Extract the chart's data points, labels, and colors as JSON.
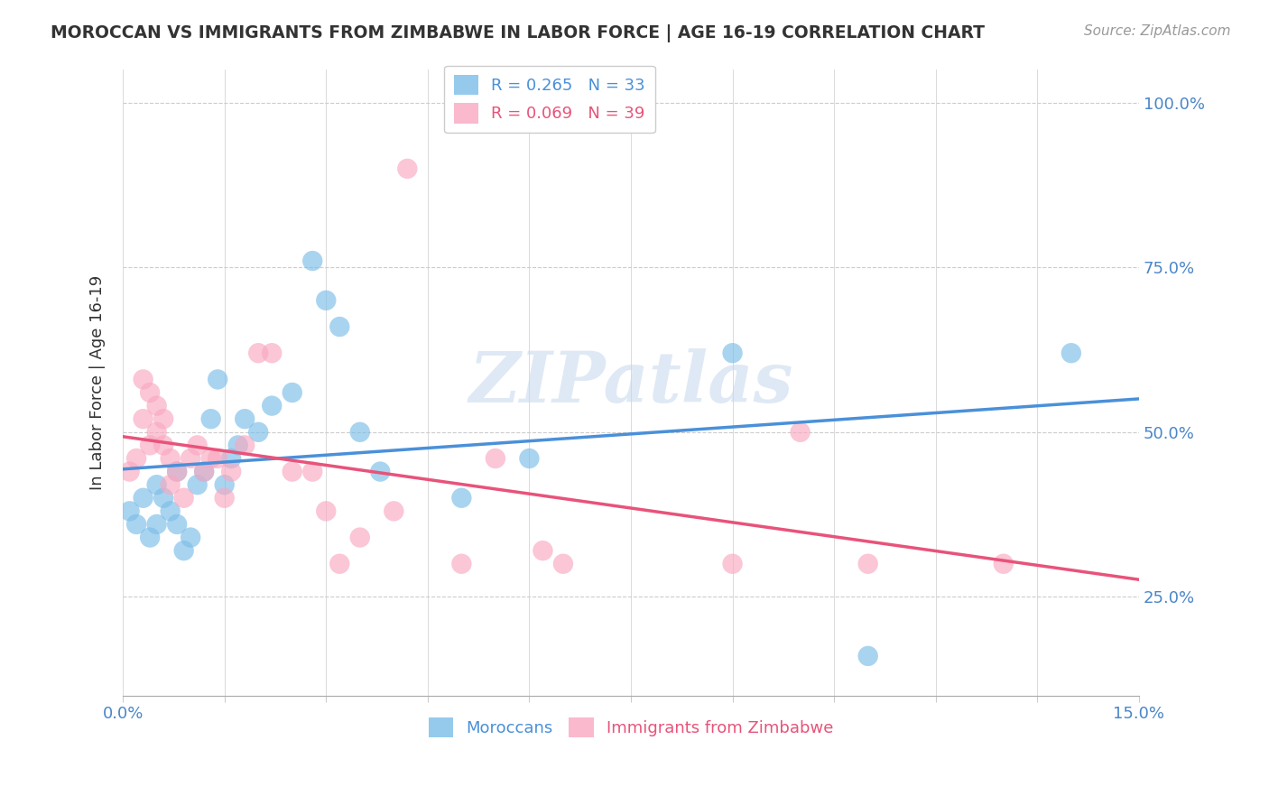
{
  "title": "MOROCCAN VS IMMIGRANTS FROM ZIMBABWE IN LABOR FORCE | AGE 16-19 CORRELATION CHART",
  "source": "Source: ZipAtlas.com",
  "ylabel": "In Labor Force | Age 16-19",
  "legend_moroccan": "R = 0.265   N = 33",
  "legend_zimbabwe": "R = 0.069   N = 39",
  "legend_label_moroccan": "Moroccans",
  "legend_label_zimbabwe": "Immigrants from Zimbabwe",
  "moroccan_color": "#7bbde8",
  "zimbabwe_color": "#f9a8c0",
  "moroccan_line_color": "#4a90d9",
  "zimbabwe_line_color": "#e8537a",
  "watermark": "ZIPatlas",
  "xmin": 0.0,
  "xmax": 0.15,
  "ymin": 0.1,
  "ymax": 1.05,
  "moroccan_x": [
    0.001,
    0.002,
    0.003,
    0.004,
    0.005,
    0.005,
    0.006,
    0.007,
    0.008,
    0.008,
    0.009,
    0.01,
    0.011,
    0.012,
    0.013,
    0.014,
    0.015,
    0.016,
    0.017,
    0.018,
    0.02,
    0.022,
    0.025,
    0.028,
    0.03,
    0.032,
    0.035,
    0.038,
    0.05,
    0.06,
    0.09,
    0.11,
    0.14
  ],
  "moroccan_y": [
    0.38,
    0.36,
    0.4,
    0.34,
    0.36,
    0.42,
    0.4,
    0.38,
    0.44,
    0.36,
    0.32,
    0.34,
    0.42,
    0.44,
    0.52,
    0.58,
    0.42,
    0.46,
    0.48,
    0.52,
    0.5,
    0.54,
    0.56,
    0.76,
    0.7,
    0.66,
    0.5,
    0.44,
    0.4,
    0.46,
    0.62,
    0.16,
    0.62
  ],
  "zimbabwe_x": [
    0.001,
    0.002,
    0.003,
    0.003,
    0.004,
    0.004,
    0.005,
    0.005,
    0.006,
    0.006,
    0.007,
    0.007,
    0.008,
    0.009,
    0.01,
    0.011,
    0.012,
    0.013,
    0.014,
    0.015,
    0.016,
    0.018,
    0.02,
    0.022,
    0.025,
    0.028,
    0.03,
    0.032,
    0.035,
    0.04,
    0.042,
    0.05,
    0.055,
    0.062,
    0.065,
    0.09,
    0.1,
    0.11,
    0.13
  ],
  "zimbabwe_y": [
    0.44,
    0.46,
    0.52,
    0.58,
    0.48,
    0.56,
    0.5,
    0.54,
    0.48,
    0.52,
    0.46,
    0.42,
    0.44,
    0.4,
    0.46,
    0.48,
    0.44,
    0.46,
    0.46,
    0.4,
    0.44,
    0.48,
    0.62,
    0.62,
    0.44,
    0.44,
    0.38,
    0.3,
    0.34,
    0.38,
    0.9,
    0.3,
    0.46,
    0.32,
    0.3,
    0.3,
    0.5,
    0.3,
    0.3
  ]
}
